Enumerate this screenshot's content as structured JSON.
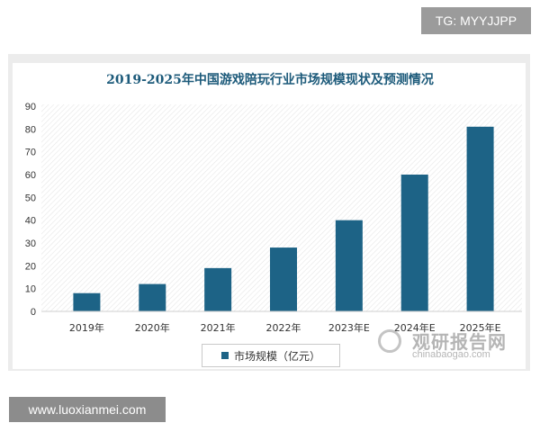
{
  "badges": {
    "telegram": "TG: MYYJJPP",
    "website": "www.luoxianmei.com"
  },
  "watermark": {
    "brand_cn": "观研报告网",
    "domain": "chinabaogao.com"
  },
  "colors": {
    "bar": "#1d6386",
    "title": "#1c5a7a"
  },
  "chart_data": {
    "type": "bar",
    "title": "2019-2025年中国游戏陪玩行业市场规模现状及预测情况",
    "categories": [
      "2019年",
      "2020年",
      "2021年",
      "2022年",
      "2023年E",
      "2024年E",
      "2025年E"
    ],
    "series": [
      {
        "name": "市场规模（亿元）",
        "values": [
          8,
          12,
          19,
          28,
          40,
          60,
          81
        ]
      }
    ],
    "xlabel": "",
    "ylabel": "",
    "ylim": [
      0,
      90
    ],
    "yticks": [
      "0",
      "10",
      "20",
      "30",
      "40",
      "50",
      "60",
      "70",
      "80",
      "90"
    ],
    "grid": false,
    "legend_position": "bottom"
  }
}
